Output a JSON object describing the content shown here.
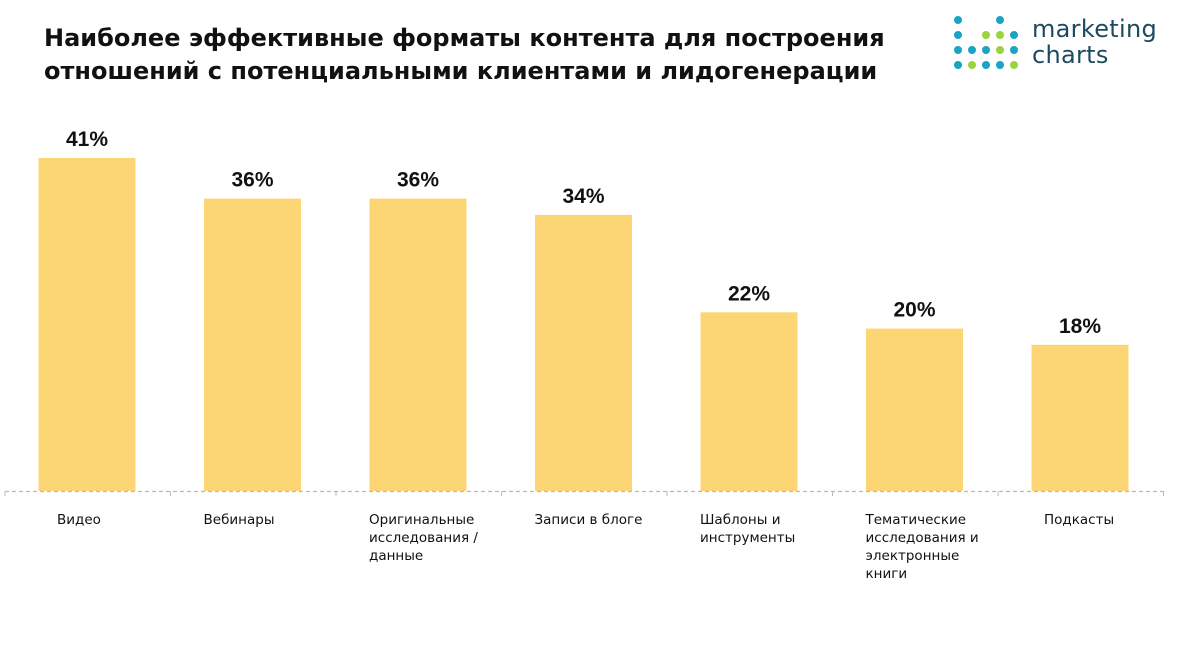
{
  "logo": {
    "line1": "marketing",
    "line2": "charts"
  },
  "colors": {
    "bar": "#fcd675",
    "axis": "#b8b8b8",
    "logo_text": "#1d4a5e",
    "logo_teal": "#1ba3c4",
    "logo_green": "#9bd33f"
  },
  "chart_data": {
    "type": "bar",
    "title": "Наиболее эффективные форматы контента для построения отношений с потенциальными клиентами и лидогенерации",
    "xlabel": "",
    "ylabel": "",
    "ylim": [
      0,
      41
    ],
    "grid": false,
    "categories": [
      "Видео",
      "Вебинары",
      "Оригинальные исследования / данные",
      "Записи в блоге",
      "Шаблоны и инструменты",
      "Тематические исследования и электронные книги",
      "Подкасты"
    ],
    "values": [
      41,
      36,
      36,
      34,
      22,
      20,
      18
    ],
    "value_labels": [
      "41%",
      "36%",
      "36%",
      "34%",
      "22%",
      "20%",
      "18%"
    ]
  }
}
